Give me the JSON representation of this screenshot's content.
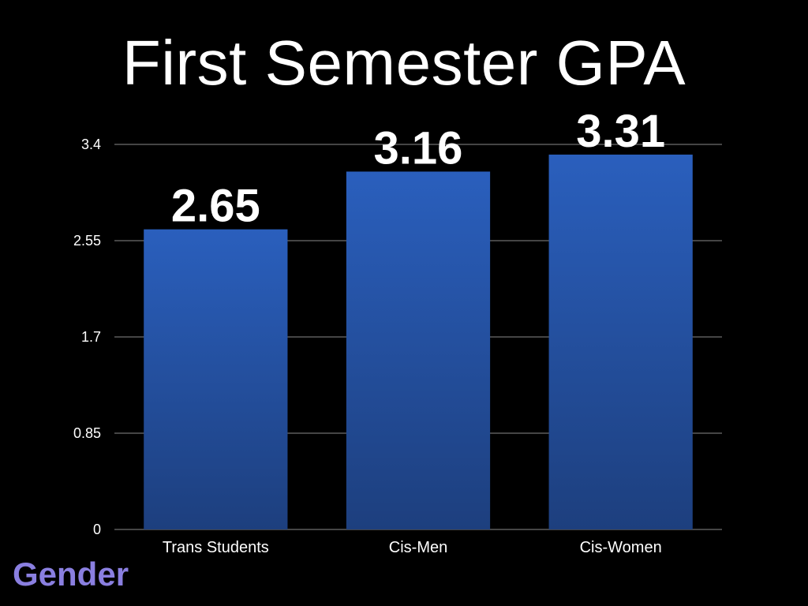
{
  "slide": {
    "title": "First Semester GPA",
    "footer_label": "Gender",
    "footer_color": "#8a7fe0",
    "background": "#000000"
  },
  "chart_data": {
    "type": "bar",
    "categories": [
      "Trans Students",
      "Cis-Men",
      "Cis-Women"
    ],
    "values": [
      2.65,
      3.16,
      3.31
    ],
    "value_labels": [
      "2.65",
      "3.16",
      "3.31"
    ],
    "title": "",
    "xlabel": "",
    "ylabel": "",
    "ylim": [
      0,
      3.4
    ],
    "yticks": [
      0,
      0.85,
      1.7,
      2.55,
      3.4
    ],
    "ytick_labels": [
      "0",
      "0.85",
      "1.7",
      "2.55",
      "3.4"
    ],
    "grid": true,
    "legend": "none",
    "bar_color_top": "#2a5fbd",
    "bar_color_bottom": "#1d3f7e",
    "grid_color": "#8a8a8a"
  }
}
